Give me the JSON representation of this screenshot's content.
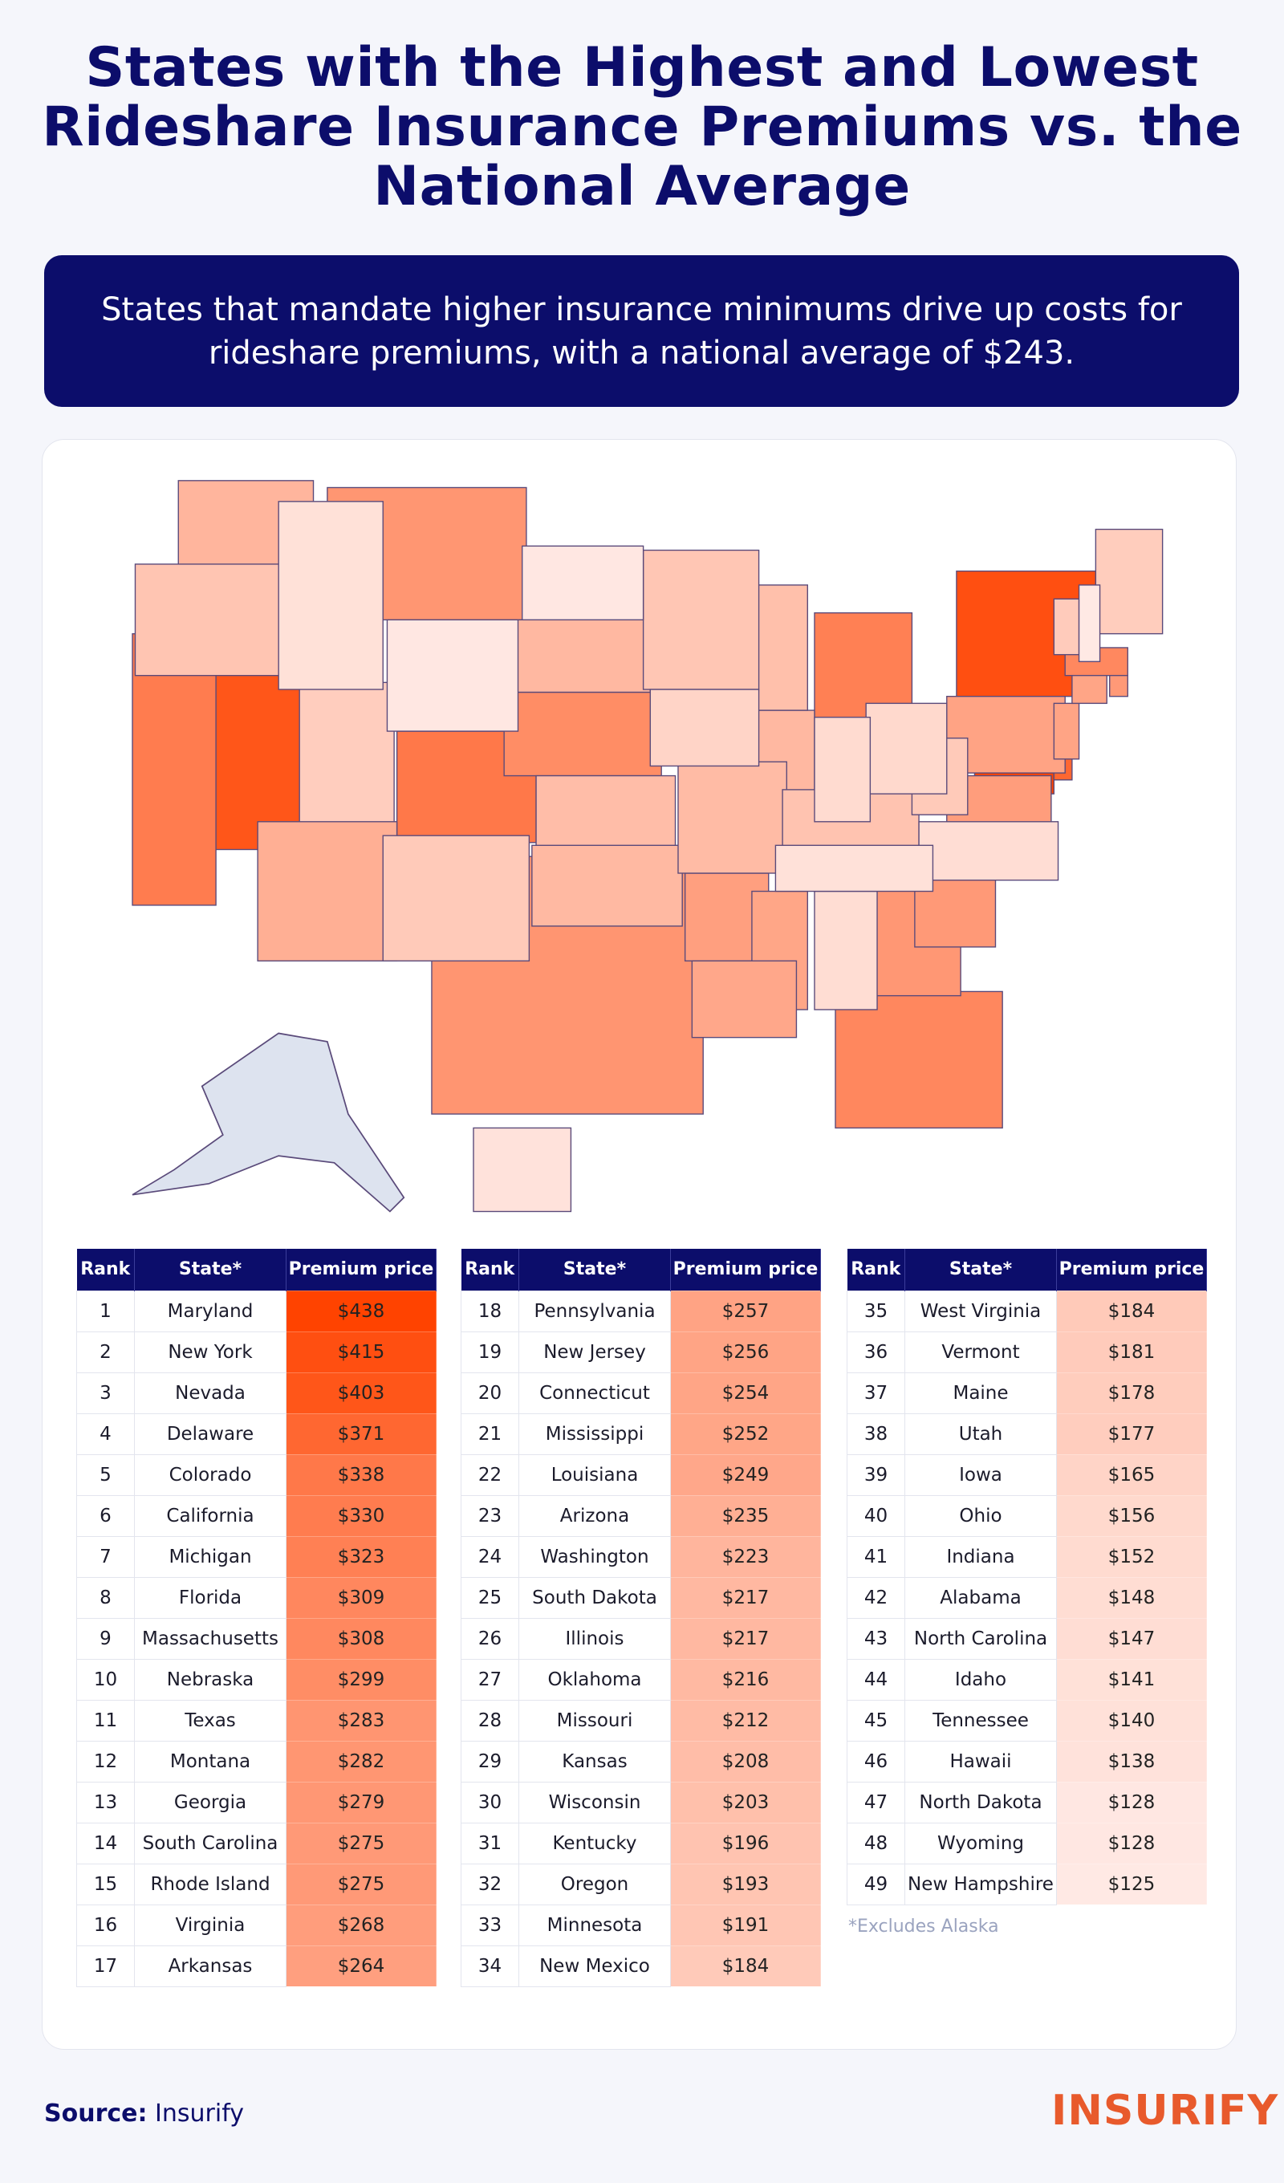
{
  "title": "States with the Highest and Lowest Rideshare Insurance Premiums vs. the National Average",
  "subtitle": "States that mandate higher insurance minimums drive up costs for rideshare premiums, with a national average of $243.",
  "table_headers": {
    "rank": "Rank",
    "state": "State*",
    "price": "Premium price"
  },
  "colors": {
    "navy": "#0c0d6b",
    "high": "#ff4300",
    "low": "#ffe9e4",
    "alaska": "#dde3ef",
    "border": "#5a4a7a"
  },
  "rows": [
    [
      "1",
      "Maryland",
      "$438"
    ],
    [
      "2",
      "New York",
      "$415"
    ],
    [
      "3",
      "Nevada",
      "$403"
    ],
    [
      "4",
      "Delaware",
      "$371"
    ],
    [
      "5",
      "Colorado",
      "$338"
    ],
    [
      "6",
      "California",
      "$330"
    ],
    [
      "7",
      "Michigan",
      "$323"
    ],
    [
      "8",
      "Florida",
      "$309"
    ],
    [
      "9",
      "Massachusetts",
      "$308"
    ],
    [
      "10",
      "Nebraska",
      "$299"
    ],
    [
      "11",
      "Texas",
      "$283"
    ],
    [
      "12",
      "Montana",
      "$282"
    ],
    [
      "13",
      "Georgia",
      "$279"
    ],
    [
      "14",
      "South Carolina",
      "$275"
    ],
    [
      "15",
      "Rhode Island",
      "$275"
    ],
    [
      "16",
      "Virginia",
      "$268"
    ],
    [
      "17",
      "Arkansas",
      "$264"
    ],
    [
      "18",
      "Pennsylvania",
      "$257"
    ],
    [
      "19",
      "New Jersey",
      "$256"
    ],
    [
      "20",
      "Connecticut",
      "$254"
    ],
    [
      "21",
      "Mississippi",
      "$252"
    ],
    [
      "22",
      "Louisiana",
      "$249"
    ],
    [
      "23",
      "Arizona",
      "$235"
    ],
    [
      "24",
      "Washington",
      "$223"
    ],
    [
      "25",
      "South Dakota",
      "$217"
    ],
    [
      "26",
      "Illinois",
      "$217"
    ],
    [
      "27",
      "Oklahoma",
      "$216"
    ],
    [
      "28",
      "Missouri",
      "$212"
    ],
    [
      "29",
      "Kansas",
      "$208"
    ],
    [
      "30",
      "Wisconsin",
      "$203"
    ],
    [
      "31",
      "Kentucky",
      "$196"
    ],
    [
      "32",
      "Oregon",
      "$193"
    ],
    [
      "33",
      "Minnesota",
      "$191"
    ],
    [
      "34",
      "New Mexico",
      "$184"
    ],
    [
      "35",
      "West Virginia",
      "$184"
    ],
    [
      "36",
      "Vermont",
      "$181"
    ],
    [
      "37",
      "Maine",
      "$178"
    ],
    [
      "38",
      "Utah",
      "$177"
    ],
    [
      "39",
      "Iowa",
      "$165"
    ],
    [
      "40",
      "Ohio",
      "$156"
    ],
    [
      "41",
      "Indiana",
      "$152"
    ],
    [
      "42",
      "Alabama",
      "$148"
    ],
    [
      "43",
      "North Carolina",
      "$147"
    ],
    [
      "44",
      "Idaho",
      "$141"
    ],
    [
      "45",
      "Tennessee",
      "$140"
    ],
    [
      "46",
      "Hawaii",
      "$138"
    ],
    [
      "47",
      "North Dakota",
      "$128"
    ],
    [
      "48",
      "Wyoming",
      "$128"
    ],
    [
      "49",
      "New Hampshire",
      "$125"
    ]
  ],
  "footnote": "*Excludes Alaska",
  "source_label": "Source:",
  "source_value": "Insurify",
  "logo": "INSURIFY"
}
